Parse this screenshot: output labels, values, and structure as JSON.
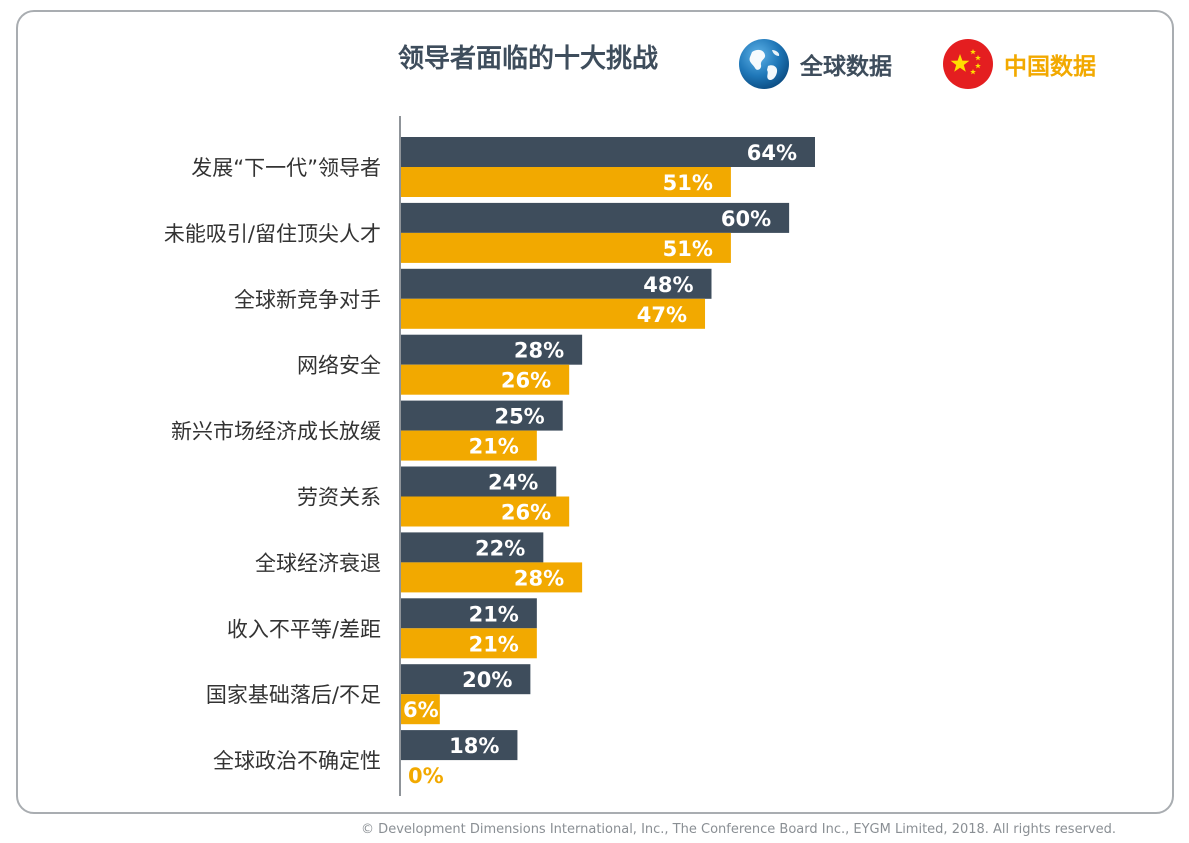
{
  "title": "领导者面临的十大挑战",
  "legend": {
    "global_label": "全球数据",
    "china_label": "中国数据",
    "global_icon": "globe-icon",
    "china_icon": "china-flag-icon"
  },
  "colors": {
    "global": "#3e4d5c",
    "china": "#f2a900",
    "value_text_on_bar": "#ffffff"
  },
  "footer": "© Development Dimensions International, Inc., The Conference Board Inc., EYGM Limited, 2018. All rights reserved.",
  "chart_data": {
    "type": "bar",
    "orientation": "horizontal",
    "title": "领导者面临的十大挑战",
    "categories": [
      "发展“下一代”领导者",
      "未能吸引/留住顶尖人才",
      "全球新竞争对手",
      "网络安全",
      "新兴市场经济成长放缓",
      "劳资关系",
      "全球经济衰退",
      "收入不平等/差距",
      "国家基础落后/不足",
      "全球政治不确定性"
    ],
    "series": [
      {
        "name": "全球数据",
        "values": [
          64,
          60,
          48,
          28,
          25,
          24,
          22,
          21,
          20,
          18
        ],
        "labels": [
          "64%",
          "60%",
          "48%",
          "28%",
          "25%",
          "24%",
          "22%",
          "21%",
          "20%",
          "18%"
        ]
      },
      {
        "name": "中国数据",
        "values": [
          51,
          51,
          47,
          26,
          21,
          26,
          28,
          21,
          6,
          0
        ],
        "labels": [
          "51%",
          "51%",
          "47%",
          "26%",
          "21%",
          "26%",
          "28%",
          "21%",
          "6%",
          "0%"
        ]
      }
    ],
    "unit": "%",
    "legend_position": "top-right",
    "grid": false
  }
}
